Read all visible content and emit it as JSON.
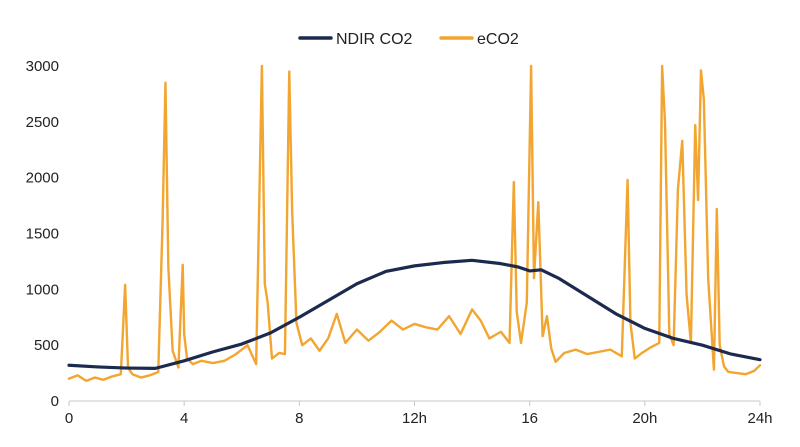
{
  "chart_data": {
    "type": "line",
    "title": "",
    "xlabel": "",
    "ylabel": "",
    "xlim": [
      0,
      24
    ],
    "ylim": [
      0,
      3000
    ],
    "grid": false,
    "legend_position": "top-center",
    "x_ticks": [
      {
        "value": 0,
        "label": "0"
      },
      {
        "value": 4,
        "label": "4"
      },
      {
        "value": 8,
        "label": "8"
      },
      {
        "value": 12,
        "label": "12h"
      },
      {
        "value": 16,
        "label": "16"
      },
      {
        "value": 20,
        "label": "20h"
      },
      {
        "value": 24,
        "label": "24h"
      }
    ],
    "y_ticks": [
      {
        "value": 0,
        "label": "0"
      },
      {
        "value": 500,
        "label": "500"
      },
      {
        "value": 1000,
        "label": "1000"
      },
      {
        "value": 1500,
        "label": "1500"
      },
      {
        "value": 2000,
        "label": "2000"
      },
      {
        "value": 2500,
        "label": "2500"
      },
      {
        "value": 3000,
        "label": "3000"
      }
    ],
    "series": [
      {
        "name": "NDIR CO2",
        "color": "#1b2a4e",
        "x": [
          0,
          1,
          2,
          3,
          4,
          5,
          6,
          7,
          8,
          9,
          10,
          11,
          12,
          13,
          14,
          15,
          15.6,
          16,
          16.4,
          17,
          18,
          19,
          20,
          21,
          22,
          23,
          24
        ],
        "y": [
          320,
          305,
          295,
          292,
          360,
          440,
          510,
          610,
          750,
          900,
          1050,
          1160,
          1210,
          1240,
          1260,
          1230,
          1200,
          1165,
          1175,
          1100,
          940,
          780,
          650,
          560,
          500,
          420,
          370
        ]
      },
      {
        "name": "eCO2",
        "color": "#f2a530",
        "x": [
          0,
          0.3,
          0.6,
          0.9,
          1.2,
          1.5,
          1.8,
          1.95,
          2.05,
          2.2,
          2.5,
          2.8,
          3.1,
          3.25,
          3.35,
          3.45,
          3.6,
          3.8,
          3.95,
          4.0,
          4.1,
          4.3,
          4.6,
          5.0,
          5.4,
          5.8,
          6.2,
          6.5,
          6.7,
          6.8,
          6.9,
          7.05,
          7.3,
          7.5,
          7.65,
          7.75,
          7.9,
          8.1,
          8.4,
          8.7,
          9.0,
          9.3,
          9.6,
          10.0,
          10.4,
          10.8,
          11.2,
          11.6,
          12.0,
          12.4,
          12.8,
          13.2,
          13.6,
          14.0,
          14.3,
          14.6,
          15.0,
          15.3,
          15.45,
          15.55,
          15.7,
          15.9,
          16.05,
          16.15,
          16.3,
          16.45,
          16.6,
          16.75,
          16.9,
          17.2,
          17.6,
          18.0,
          18.4,
          18.8,
          19.2,
          19.4,
          19.5,
          19.65,
          19.9,
          20.2,
          20.5,
          20.6,
          20.7,
          20.85,
          21.0,
          21.15,
          21.3,
          21.45,
          21.6,
          21.75,
          21.85,
          21.95,
          22.05,
          22.2,
          22.4,
          22.5,
          22.6,
          22.75,
          22.9,
          23.2,
          23.5,
          23.8,
          24.0
        ],
        "y": [
          200,
          230,
          180,
          210,
          190,
          220,
          240,
          1040,
          300,
          240,
          210,
          230,
          260,
          1600,
          2850,
          1200,
          450,
          300,
          1220,
          600,
          380,
          330,
          360,
          340,
          360,
          420,
          500,
          330,
          3000,
          1050,
          880,
          380,
          430,
          420,
          2950,
          1700,
          700,
          500,
          560,
          450,
          560,
          780,
          520,
          640,
          540,
          620,
          720,
          640,
          690,
          660,
          640,
          760,
          600,
          820,
          720,
          560,
          620,
          520,
          1960,
          800,
          520,
          880,
          3000,
          1100,
          1780,
          580,
          760,
          470,
          350,
          430,
          460,
          420,
          440,
          460,
          400,
          1980,
          700,
          380,
          430,
          480,
          520,
          3000,
          2500,
          600,
          500,
          1900,
          2330,
          950,
          520,
          2470,
          1800,
          2960,
          2700,
          1100,
          280,
          1720,
          500,
          310,
          260,
          250,
          240,
          270,
          320
        ]
      }
    ]
  }
}
